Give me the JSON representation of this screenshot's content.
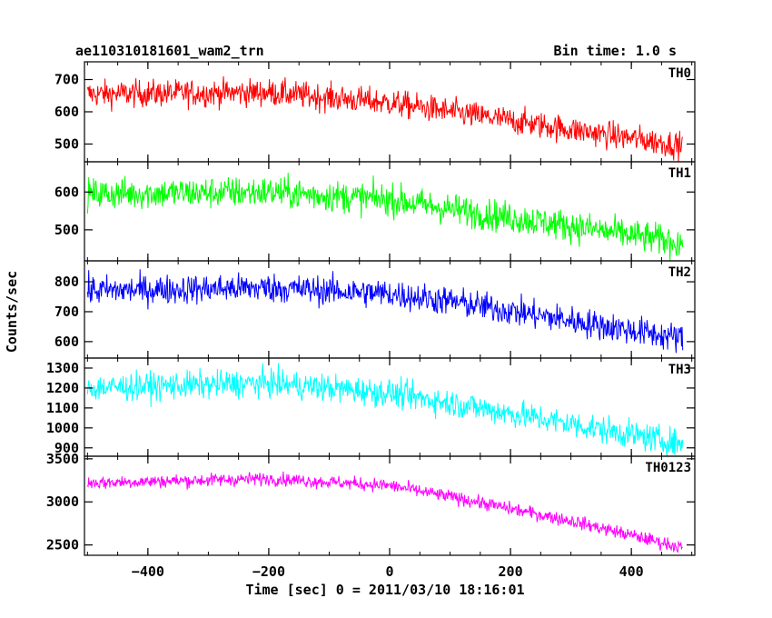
{
  "title_left": "ae110310181601_wam2_trn",
  "title_right": "Bin time: 1.0 s",
  "xlabel": "Time [sec] 0 = 2011/03/10 18:16:01",
  "ylabel": "Counts/sec",
  "chart_data": {
    "type": "line",
    "xlim": [
      -505,
      505
    ],
    "x_ticks": [
      -400,
      -200,
      0,
      200,
      400
    ],
    "x_tick_labels": [
      "−400",
      "−200",
      "0",
      "200",
      "400"
    ],
    "grid": false,
    "legend": "none",
    "panels": [
      {
        "label": "TH0",
        "color": "#ff0000",
        "ylim": [
          445,
          755
        ],
        "y_ticks": [
          500,
          600,
          700
        ],
        "y_tick_labels": [
          "500",
          "600",
          "700"
        ],
        "trend_x": [
          -500,
          -200,
          0,
          100,
          300,
          485
        ],
        "trend_y": [
          655,
          660,
          628,
          600,
          545,
          495
        ],
        "noise": 30
      },
      {
        "label": "TH1",
        "color": "#00ff00",
        "ylim": [
          418,
          680
        ],
        "y_ticks": [
          500,
          600
        ],
        "y_tick_labels": [
          "500",
          "600"
        ],
        "trend_x": [
          -500,
          -200,
          0,
          100,
          300,
          485
        ],
        "trend_y": [
          595,
          600,
          580,
          555,
          510,
          465
        ],
        "noise": 30
      },
      {
        "label": "TH2",
        "color": "#0000ff",
        "ylim": [
          545,
          870
        ],
        "y_ticks": [
          600,
          700,
          800
        ],
        "y_tick_labels": [
          "600",
          "700",
          "800"
        ],
        "trend_x": [
          -500,
          -200,
          0,
          100,
          300,
          485
        ],
        "trend_y": [
          770,
          780,
          760,
          735,
          670,
          610
        ],
        "noise": 35
      },
      {
        "label": "TH3",
        "color": "#00ffff",
        "ylim": [
          858,
          1350
        ],
        "y_ticks": [
          900,
          1000,
          1100,
          1200,
          1300
        ],
        "y_tick_labels": [
          "900",
          "1000",
          "1100",
          "1200",
          "1300"
        ],
        "trend_x": [
          -500,
          -200,
          0,
          100,
          300,
          485
        ],
        "trend_y": [
          1200,
          1225,
          1175,
          1125,
          1020,
          920
        ],
        "noise": 50
      },
      {
        "label": "TH0123",
        "color": "#ff00ff",
        "ylim": [
          2380,
          3530
        ],
        "y_ticks": [
          2500,
          3000,
          3500
        ],
        "y_tick_labels": [
          "2500",
          "3000",
          "3500"
        ],
        "trend_x": [
          -500,
          -200,
          0,
          100,
          300,
          485
        ],
        "trend_y": [
          3220,
          3270,
          3190,
          3060,
          2780,
          2470
        ],
        "noise": 55
      }
    ]
  }
}
